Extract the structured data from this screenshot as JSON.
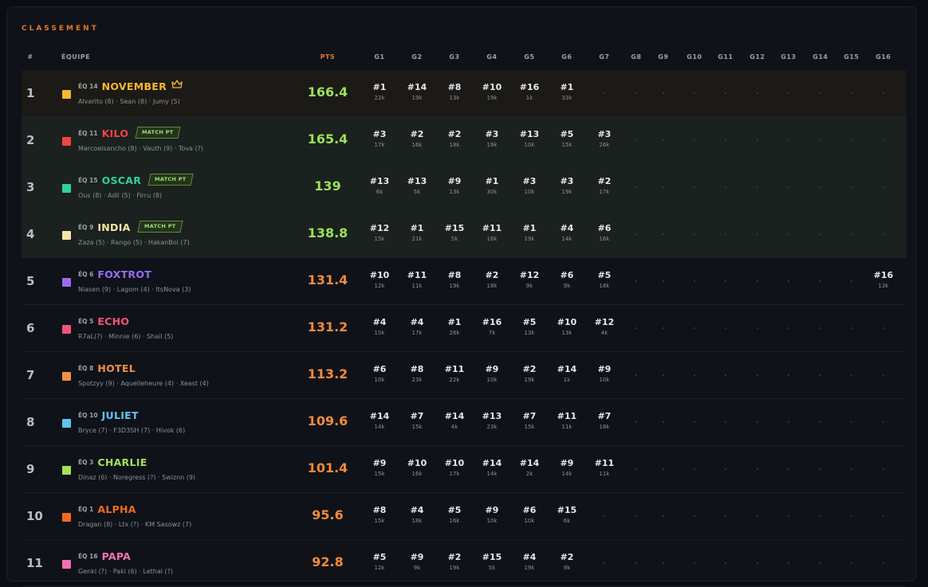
{
  "title": "CLASSEMENT",
  "headers": {
    "rank": "#",
    "team": "ÉQUIPE",
    "pts": "PTS",
    "games": [
      "G1",
      "G2",
      "G3",
      "G4",
      "G5",
      "G6",
      "G7",
      "G8",
      "G9",
      "G10",
      "G11",
      "G12",
      "G13",
      "G14",
      "G15",
      "G16"
    ]
  },
  "badge_label": "MATCH PT",
  "rows": [
    {
      "rank": "1",
      "eq": "ÉQ 14",
      "name": "NOVEMBER",
      "color": "#f5b82e",
      "pts": "166.4",
      "pts_color": "#9be05c",
      "players": "Alvarito (8) · Sean (8) · Jumy (5)",
      "status": "leader",
      "crown": true,
      "games": [
        [
          "#1",
          "22k"
        ],
        [
          "#14",
          "19k"
        ],
        [
          "#8",
          "13k"
        ],
        [
          "#10",
          "19k"
        ],
        [
          "#16",
          "1k"
        ],
        [
          "#1",
          "33k"
        ],
        null,
        null,
        null,
        null,
        null,
        null,
        null,
        null,
        null,
        null
      ]
    },
    {
      "rank": "2",
      "eq": "ÉQ 11",
      "name": "KILO",
      "color": "#f04444",
      "pts": "165.4",
      "pts_color": "#9be05c",
      "players": "Marcoelsancho (8) · Vauth (9) · Tova (?)",
      "status": "matchpt",
      "games": [
        [
          "#3",
          "17k"
        ],
        [
          "#2",
          "16k"
        ],
        [
          "#2",
          "18k"
        ],
        [
          "#3",
          "19k"
        ],
        [
          "#13",
          "10k"
        ],
        [
          "#5",
          "15k"
        ],
        [
          "#3",
          "26k"
        ],
        null,
        null,
        null,
        null,
        null,
        null,
        null,
        null,
        null
      ]
    },
    {
      "rank": "3",
      "eq": "ÉQ 15",
      "name": "OSCAR",
      "color": "#2fd39a",
      "pts": "139",
      "pts_color": "#9be05c",
      "players": "Ous (8) · Adil (5) · Firru (8)",
      "status": "matchpt",
      "games": [
        [
          "#13",
          "6k"
        ],
        [
          "#13",
          "5k"
        ],
        [
          "#9",
          "13k"
        ],
        [
          "#1",
          "30k"
        ],
        [
          "#3",
          "10k"
        ],
        [
          "#3",
          "19k"
        ],
        [
          "#2",
          "17k"
        ],
        null,
        null,
        null,
        null,
        null,
        null,
        null,
        null,
        null
      ]
    },
    {
      "rank": "4",
      "eq": "ÉQ 9",
      "name": "INDIA",
      "color": "#fbe3a8",
      "pts": "138.8",
      "pts_color": "#9be05c",
      "players": "Zaza (5) · Rango (5) · HakanBoi (7)",
      "status": "matchpt",
      "games": [
        [
          "#12",
          "15k"
        ],
        [
          "#1",
          "21k"
        ],
        [
          "#15",
          "5k"
        ],
        [
          "#11",
          "16k"
        ],
        [
          "#1",
          "19k"
        ],
        [
          "#4",
          "14k"
        ],
        [
          "#6",
          "16k"
        ],
        null,
        null,
        null,
        null,
        null,
        null,
        null,
        null,
        null
      ]
    },
    {
      "rank": "5",
      "eq": "ÉQ 6",
      "name": "FOXTROT",
      "color": "#9a6cf2",
      "pts": "131.4",
      "pts_color": "#f28a3c",
      "players": "Niasen (9) · Lagom (4) · ItsNova (3)",
      "status": "",
      "games": [
        [
          "#10",
          "12k"
        ],
        [
          "#11",
          "11k"
        ],
        [
          "#8",
          "19k"
        ],
        [
          "#2",
          "18k"
        ],
        [
          "#12",
          "9k"
        ],
        [
          "#6",
          "9k"
        ],
        [
          "#5",
          "18k"
        ],
        null,
        null,
        null,
        null,
        null,
        null,
        null,
        null,
        [
          "#16",
          "13k"
        ]
      ]
    },
    {
      "rank": "6",
      "eq": "ÉQ 5",
      "name": "ECHO",
      "color": "#f2557a",
      "pts": "131.2",
      "pts_color": "#f28a3c",
      "players": "R7aL(?) · Minnie (6) · Shail (5)",
      "status": "",
      "games": [
        [
          "#4",
          "15k"
        ],
        [
          "#4",
          "17k"
        ],
        [
          "#1",
          "26k"
        ],
        [
          "#16",
          "7k"
        ],
        [
          "#5",
          "13k"
        ],
        [
          "#10",
          "13k"
        ],
        [
          "#12",
          "4k"
        ],
        null,
        null,
        null,
        null,
        null,
        null,
        null,
        null,
        null
      ]
    },
    {
      "rank": "7",
      "eq": "ÉQ 8",
      "name": "HOTEL",
      "color": "#f59042",
      "pts": "113.2",
      "pts_color": "#f28a3c",
      "players": "Spotzyy (9) · Aquelleheure (4) · Xeast (4)",
      "status": "",
      "games": [
        [
          "#6",
          "10k"
        ],
        [
          "#8",
          "23k"
        ],
        [
          "#11",
          "22k"
        ],
        [
          "#9",
          "10k"
        ],
        [
          "#2",
          "19k"
        ],
        [
          "#14",
          "1k"
        ],
        [
          "#9",
          "10k"
        ],
        null,
        null,
        null,
        null,
        null,
        null,
        null,
        null,
        null
      ]
    },
    {
      "rank": "8",
      "eq": "ÉQ 10",
      "name": "JULIET",
      "color": "#5fc3f2",
      "pts": "109.6",
      "pts_color": "#f28a3c",
      "players": "Bryce (7) · F3D3SH (7) · Hivok (6)",
      "status": "",
      "games": [
        [
          "#14",
          "14k"
        ],
        [
          "#7",
          "15k"
        ],
        [
          "#14",
          "4k"
        ],
        [
          "#13",
          "23k"
        ],
        [
          "#7",
          "15k"
        ],
        [
          "#11",
          "11k"
        ],
        [
          "#7",
          "18k"
        ],
        null,
        null,
        null,
        null,
        null,
        null,
        null,
        null,
        null
      ]
    },
    {
      "rank": "9",
      "eq": "ÉQ 3",
      "name": "CHARLIE",
      "color": "#a3e05a",
      "pts": "101.4",
      "pts_color": "#f28a3c",
      "players": "Dinaz (6) · Noregress (?) · Swiznn (9)",
      "status": "",
      "games": [
        [
          "#9",
          "15k"
        ],
        [
          "#10",
          "16k"
        ],
        [
          "#10",
          "17k"
        ],
        [
          "#14",
          "14k"
        ],
        [
          "#14",
          "2k"
        ],
        [
          "#9",
          "14k"
        ],
        [
          "#11",
          "11k"
        ],
        null,
        null,
        null,
        null,
        null,
        null,
        null,
        null,
        null
      ]
    },
    {
      "rank": "10",
      "eq": "ÉQ 1",
      "name": "ALPHA",
      "color": "#f56a24",
      "pts": "95.6",
      "pts_color": "#f28a3c",
      "players": "Dragan (8) · Ltx (?) · KM Sasowz (7)",
      "status": "",
      "games": [
        [
          "#8",
          "15k"
        ],
        [
          "#4",
          "18k"
        ],
        [
          "#5",
          "16k"
        ],
        [
          "#9",
          "10k"
        ],
        [
          "#6",
          "10k"
        ],
        [
          "#15",
          "6k"
        ],
        null,
        null,
        null,
        null,
        null,
        null,
        null,
        null,
        null,
        null
      ]
    },
    {
      "rank": "11",
      "eq": "ÉQ 16",
      "name": "PAPA",
      "color": "#f270b8",
      "pts": "92.8",
      "pts_color": "#f28a3c",
      "players": "Genki (?) · Paki (6) · Lethal (?)",
      "status": "",
      "games": [
        [
          "#5",
          "12k"
        ],
        [
          "#9",
          "9k"
        ],
        [
          "#2",
          "19k"
        ],
        [
          "#15",
          "5k"
        ],
        [
          "#4",
          "19k"
        ],
        [
          "#2",
          "9k"
        ],
        null,
        null,
        null,
        null,
        null,
        null,
        null,
        null,
        null,
        null
      ]
    }
  ]
}
